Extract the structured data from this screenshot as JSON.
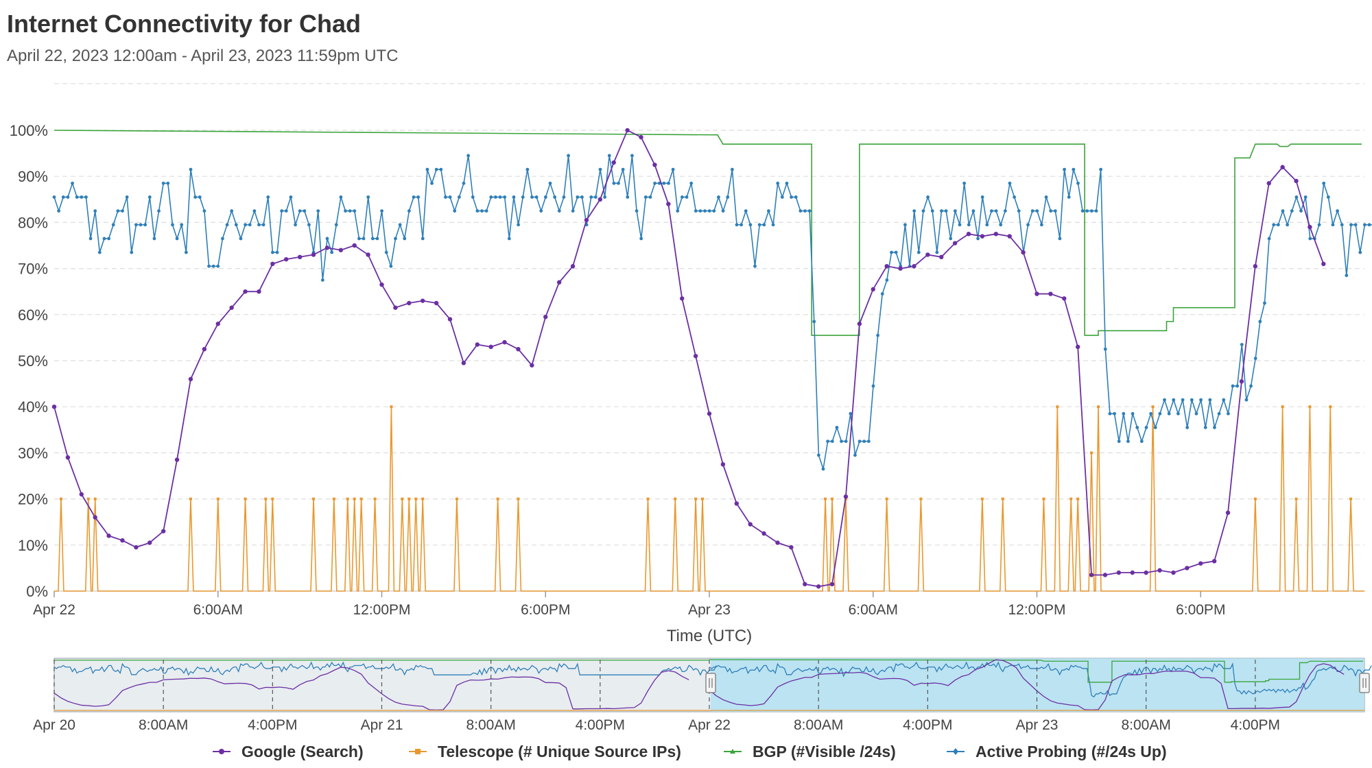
{
  "header": {
    "title": "Internet Connectivity for Chad",
    "subtitle": "April 22, 2023 12:00am - April 23, 2023 11:59pm UTC"
  },
  "chart_data": {
    "type": "line",
    "xlabel": "Time (UTC)",
    "ylabel": "",
    "ylim": [
      0,
      100
    ],
    "y_ticks": [
      "0%",
      "10%",
      "20%",
      "30%",
      "40%",
      "50%",
      "60%",
      "70%",
      "80%",
      "90%",
      "100%"
    ],
    "x_ticks": [
      "Apr 22",
      "6:00AM",
      "12:00PM",
      "6:00PM",
      "Apr 23",
      "6:00AM",
      "12:00PM",
      "6:00PM"
    ],
    "x_range_hours": [
      0,
      48
    ],
    "grid": true,
    "legend_position": "bottom",
    "series": [
      {
        "name": "Google (Search)",
        "color": "#6b2fa3",
        "x_hours": [
          0,
          0.5,
          1,
          1.5,
          2,
          2.5,
          3,
          3.5,
          4,
          4.5,
          5,
          5.5,
          6,
          6.5,
          7,
          7.5,
          8,
          8.5,
          9,
          9.5,
          10,
          10.5,
          11,
          11.5,
          12,
          12.5,
          13,
          13.5,
          14,
          14.5,
          15,
          15.5,
          16,
          16.5,
          17,
          17.5,
          18,
          18.5,
          19,
          19.5,
          20,
          20.5,
          21,
          21.5,
          22,
          22.5,
          23,
          23.5,
          24,
          24.5,
          25,
          25.5,
          26,
          26.5,
          27,
          27.5,
          28,
          28.5,
          29,
          29.5,
          30,
          30.5,
          31,
          31.5,
          32,
          32.5,
          33,
          33.5,
          34,
          34.5,
          35,
          35.5,
          36,
          36.5,
          37,
          37.5,
          38,
          38.5,
          39,
          39.5,
          40,
          40.5,
          41,
          41.5,
          42,
          42.5,
          43,
          43.5,
          44,
          44.5,
          45,
          45.5,
          46,
          46.5
        ],
        "values": [
          40,
          29,
          21,
          16,
          12,
          11,
          9.5,
          10.5,
          13,
          28.5,
          46,
          52.5,
          58,
          61.5,
          65,
          65,
          71,
          72,
          72.5,
          73,
          74.5,
          74,
          75,
          73,
          66.5,
          61.5,
          62.5,
          63,
          62.5,
          59,
          49.5,
          53.5,
          53,
          54,
          52.5,
          49,
          59.5,
          67,
          70.5,
          80.5,
          85,
          93,
          100,
          98.5,
          92.5,
          84,
          63.5,
          51,
          38.5,
          27.5,
          19,
          14.5,
          12.5,
          10.5,
          9.5,
          1.5,
          1,
          1.5,
          20.5,
          58,
          65.5,
          70.5,
          70,
          70.5,
          73,
          72.5,
          75.5,
          77.5,
          77,
          77.5,
          77,
          73.5,
          64.5,
          64.5,
          63.5,
          53,
          3.5,
          3.5,
          4,
          4,
          4,
          4.5,
          4,
          5,
          6,
          6.5,
          17,
          45.5,
          70.5,
          88.5,
          92,
          89,
          79,
          71
        ]
      },
      {
        "name": "Telescope (# Unique Source IPs)",
        "color": "#e8982e",
        "baseline": 0,
        "spikes": [
          {
            "x_hours": 0.25,
            "value": 20
          },
          {
            "x_hours": 1.25,
            "value": 20
          },
          {
            "x_hours": 1.5,
            "value": 20
          },
          {
            "x_hours": 5,
            "value": 20
          },
          {
            "x_hours": 6,
            "value": 20
          },
          {
            "x_hours": 7,
            "value": 20
          },
          {
            "x_hours": 7.75,
            "value": 20
          },
          {
            "x_hours": 8,
            "value": 20
          },
          {
            "x_hours": 9.5,
            "value": 20
          },
          {
            "x_hours": 10.25,
            "value": 20
          },
          {
            "x_hours": 10.75,
            "value": 20
          },
          {
            "x_hours": 11,
            "value": 20
          },
          {
            "x_hours": 11.25,
            "value": 20
          },
          {
            "x_hours": 11.75,
            "value": 20
          },
          {
            "x_hours": 12.35,
            "value": 40
          },
          {
            "x_hours": 12.75,
            "value": 20
          },
          {
            "x_hours": 13,
            "value": 20
          },
          {
            "x_hours": 13.25,
            "value": 20
          },
          {
            "x_hours": 13.5,
            "value": 20
          },
          {
            "x_hours": 14.75,
            "value": 20
          },
          {
            "x_hours": 16.25,
            "value": 20
          },
          {
            "x_hours": 17,
            "value": 20
          },
          {
            "x_hours": 21.75,
            "value": 20
          },
          {
            "x_hours": 22.75,
            "value": 20
          },
          {
            "x_hours": 23.5,
            "value": 20
          },
          {
            "x_hours": 23.75,
            "value": 20
          },
          {
            "x_hours": 28.25,
            "value": 20
          },
          {
            "x_hours": 28.5,
            "value": 20
          },
          {
            "x_hours": 29,
            "value": 20
          },
          {
            "x_hours": 30.5,
            "value": 20
          },
          {
            "x_hours": 31.75,
            "value": 20
          },
          {
            "x_hours": 34,
            "value": 20
          },
          {
            "x_hours": 34.75,
            "value": 20
          },
          {
            "x_hours": 36.25,
            "value": 20
          },
          {
            "x_hours": 36.75,
            "value": 40
          },
          {
            "x_hours": 37.25,
            "value": 20
          },
          {
            "x_hours": 37.5,
            "value": 20
          },
          {
            "x_hours": 38,
            "value": 30
          },
          {
            "x_hours": 38.25,
            "value": 40
          },
          {
            "x_hours": 40.25,
            "value": 40
          },
          {
            "x_hours": 44,
            "value": 20
          },
          {
            "x_hours": 45,
            "value": 40
          },
          {
            "x_hours": 45.5,
            "value": 20
          },
          {
            "x_hours": 46,
            "value": 40
          },
          {
            "x_hours": 46.75,
            "value": 40
          },
          {
            "x_hours": 47.5,
            "value": 20
          }
        ]
      },
      {
        "name": "BGP (#Visible /24s)",
        "color": "#3aa33a",
        "steps": [
          [
            0,
            100
          ],
          [
            24.3,
            99
          ],
          [
            24.5,
            97
          ],
          [
            27.75,
            97
          ],
          [
            27.75,
            55.5
          ],
          [
            29.5,
            55.5
          ],
          [
            29.5,
            97
          ],
          [
            37.75,
            97
          ],
          [
            37.75,
            55.5
          ],
          [
            38.25,
            55.5
          ],
          [
            38.25,
            56.5
          ],
          [
            40.75,
            56.5
          ],
          [
            40.75,
            58.5
          ],
          [
            41,
            58.5
          ],
          [
            41,
            61.5
          ],
          [
            43.25,
            61.5
          ],
          [
            43.25,
            94
          ],
          [
            43.8,
            94
          ],
          [
            44,
            97
          ],
          [
            44.8,
            97
          ],
          [
            44.9,
            96.5
          ],
          [
            45.2,
            96.5
          ],
          [
            45.3,
            97
          ],
          [
            47.9,
            97
          ]
        ]
      },
      {
        "name": "Active Probing (#/24s Up)",
        "color": "#2e7fb8",
        "step_hours": 0.1667,
        "values": [
          85.5,
          82.5,
          85.5,
          85.5,
          88.5,
          85.5,
          85.5,
          85.5,
          76.5,
          82.5,
          73.5,
          76.5,
          76.5,
          79.5,
          82.5,
          82.5,
          85.5,
          73.5,
          79.5,
          79.5,
          79.5,
          85.5,
          76.5,
          82.5,
          88.5,
          88.5,
          79.5,
          76.5,
          79.5,
          73.5,
          91.5,
          85.5,
          85.5,
          82.5,
          70.5,
          70.5,
          70.5,
          76.5,
          79.5,
          82.5,
          79.5,
          76.5,
          79.5,
          79.5,
          82.5,
          79.5,
          79.5,
          85.5,
          73.5,
          73.5,
          82.5,
          82.5,
          85.5,
          79.5,
          82.5,
          82.5,
          79.5,
          73.5,
          82.5,
          67.5,
          76.5,
          73.5,
          79.5,
          85.5,
          82.5,
          82.5,
          82.5,
          76.5,
          76.5,
          85.5,
          76.5,
          76.5,
          82.5,
          73.5,
          70.5,
          76.5,
          79.5,
          76.5,
          82.5,
          85.5,
          85.5,
          76.5,
          91.5,
          88.5,
          91.5,
          91.5,
          85.5,
          85.5,
          82.5,
          85.5,
          88.5,
          94.5,
          85.5,
          82.5,
          82.5,
          82.5,
          85.5,
          85.5,
          85.5,
          85.5,
          76.5,
          85.5,
          79.5,
          85.5,
          91.5,
          85.5,
          85.5,
          82.5,
          85.5,
          88.5,
          85.5,
          82.5,
          85.5,
          94.5,
          82.5,
          85.5,
          85.5,
          79.5,
          85.5,
          85.5,
          91.5,
          85.5,
          94.5,
          88.5,
          88.5,
          91.5,
          85.5,
          94.5,
          82.5,
          76.5,
          85.5,
          85.5,
          88.5,
          88.5,
          88.5,
          88.5,
          91.5,
          82.5,
          85.5,
          85.5,
          88.5,
          82.5,
          82.5,
          82.5,
          82.5,
          82.5,
          85.5,
          82.5,
          85.5,
          91.5,
          79.5,
          79.5,
          82.5,
          79.5,
          70.5,
          79.5,
          79.5,
          82.5,
          79.5,
          88.5,
          85.5,
          88.5,
          85.5,
          85.5,
          82.5,
          82.5,
          82.5,
          58.5,
          29.5,
          26.5,
          32.5,
          32.5,
          35.5,
          32.5,
          32.5,
          38.5,
          29.5,
          32.5,
          32.5,
          32.5,
          44.5,
          55.5,
          64.5,
          67.5,
          73.5,
          73.5,
          70.5,
          79.5,
          70.5,
          82.5,
          73.5,
          82.5,
          85.5,
          82.5,
          73.5,
          82.5,
          82.5,
          76.5,
          82.5,
          79.5,
          88.5,
          79.5,
          82.5,
          76.5,
          85.5,
          79.5,
          82.5,
          82.5,
          79.5,
          82.5,
          88.5,
          85.5,
          82.5,
          73.5,
          79.5,
          82.5,
          82.5,
          79.5,
          85.5,
          82.5,
          82.5,
          76.5,
          91.5,
          85.5,
          91.5,
          88.5,
          82.5,
          82.5,
          82.5,
          82.5,
          91.5,
          52.5,
          38.5,
          38.5,
          32.5,
          38.5,
          32.5,
          38.5,
          35.5,
          32.5,
          35.5,
          38.5,
          35.5,
          38.5,
          41.5,
          38.5,
          41.5,
          38.5,
          41.5,
          35.5,
          41.5,
          38.5,
          41.5,
          35.5,
          41.5,
          35.5,
          38.5,
          41.5,
          38.5,
          44.5,
          44.5,
          53.5,
          41.5,
          44.5,
          50.5,
          58.5,
          62.5,
          76.5,
          79.5,
          79.5,
          82.5,
          79.5,
          82.5,
          85.5,
          82.5,
          85.5,
          76.5,
          76.5,
          79.5,
          88.5,
          85.5,
          79.5,
          82.5,
          79.5,
          68.5,
          79.5,
          79.5,
          73.5,
          79.5,
          79.5,
          79.5,
          88.5
        ]
      }
    ]
  },
  "navigator": {
    "x_ticks": [
      "Apr 20",
      "8:00AM",
      "4:00PM",
      "Apr 21",
      "8:00AM",
      "4:00PM",
      "Apr 22",
      "8:00AM",
      "4:00PM",
      "Apr 23",
      "8:00AM",
      "4:00PM"
    ],
    "selected_range": "Apr 22 – Apr 23"
  },
  "legend": [
    {
      "label": "Google (Search)",
      "color": "#6b2fa3",
      "marker": "circle"
    },
    {
      "label": "Telescope (# Unique Source IPs)",
      "color": "#e8982e",
      "marker": "square"
    },
    {
      "label": "BGP (#Visible /24s)",
      "color": "#3aa33a",
      "marker": "triangle"
    },
    {
      "label": "Active Probing (#/24s Up)",
      "color": "#2e7fb8",
      "marker": "diamond"
    }
  ]
}
